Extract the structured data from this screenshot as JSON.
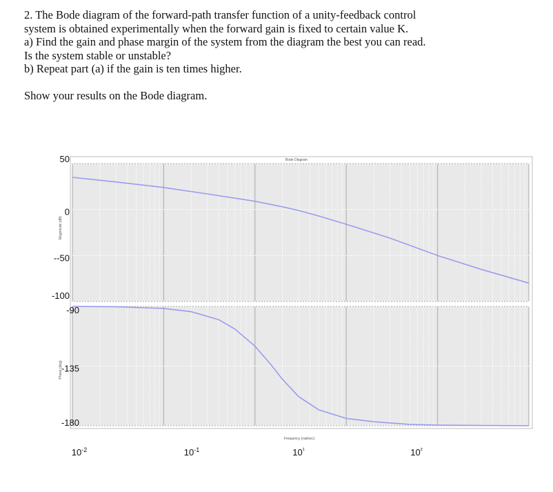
{
  "problem": {
    "lines": [
      "2.  The Bode diagram of the forward-path transfer function of a unity-feedback control",
      "system is obtained experimentally when the forward gain is fixed to certain value K.",
      "a) Find the gain and phase margin of the system from the diagram the best you can read.",
      "Is the system stable or unstable?",
      "b) Repeat part (a) if the gain is ten times higher."
    ],
    "instruction": "Show your results on the Bode diagram."
  },
  "chart_data": {
    "type": "line",
    "title": "Bode Diagram",
    "xlabel": "Frequency (rad/sec)",
    "xscale": "log",
    "xlim": [
      0.01,
      1000
    ],
    "x_tick_labels": [
      "10-2",
      "10-1",
      "10¹",
      "10²"
    ],
    "background": "#e9e9e9",
    "line_color": "#9b9bf0",
    "grid": true,
    "magnitude": {
      "ylabel": "Magnitude (dB)",
      "ylim": [
        -100,
        50
      ],
      "y_tick_labels": [
        "50",
        "0",
        "--50",
        "-100"
      ],
      "x": [
        0.01,
        0.03,
        0.1,
        0.3,
        1,
        2,
        3,
        5,
        10,
        30,
        100,
        300,
        1000
      ],
      "y": [
        35,
        30,
        24,
        17,
        9,
        3,
        -1,
        -7,
        -16,
        -31,
        -50,
        -65,
        -80
      ]
    },
    "phase": {
      "ylabel": "Phase (deg)",
      "ylim": [
        -180,
        -90
      ],
      "y_tick_labels": [
        "-90",
        "-135",
        "-180"
      ],
      "x": [
        0.01,
        0.03,
        0.1,
        0.2,
        0.4,
        0.6,
        1,
        1.5,
        2,
        3,
        5,
        10,
        20,
        50,
        100,
        300,
        1000
      ],
      "y": [
        -90,
        -90.3,
        -91.5,
        -94,
        -100,
        -107,
        -120,
        -134,
        -145,
        -158,
        -168,
        -174.5,
        -177,
        -179,
        -179.5,
        -179.8,
        -180
      ]
    }
  }
}
